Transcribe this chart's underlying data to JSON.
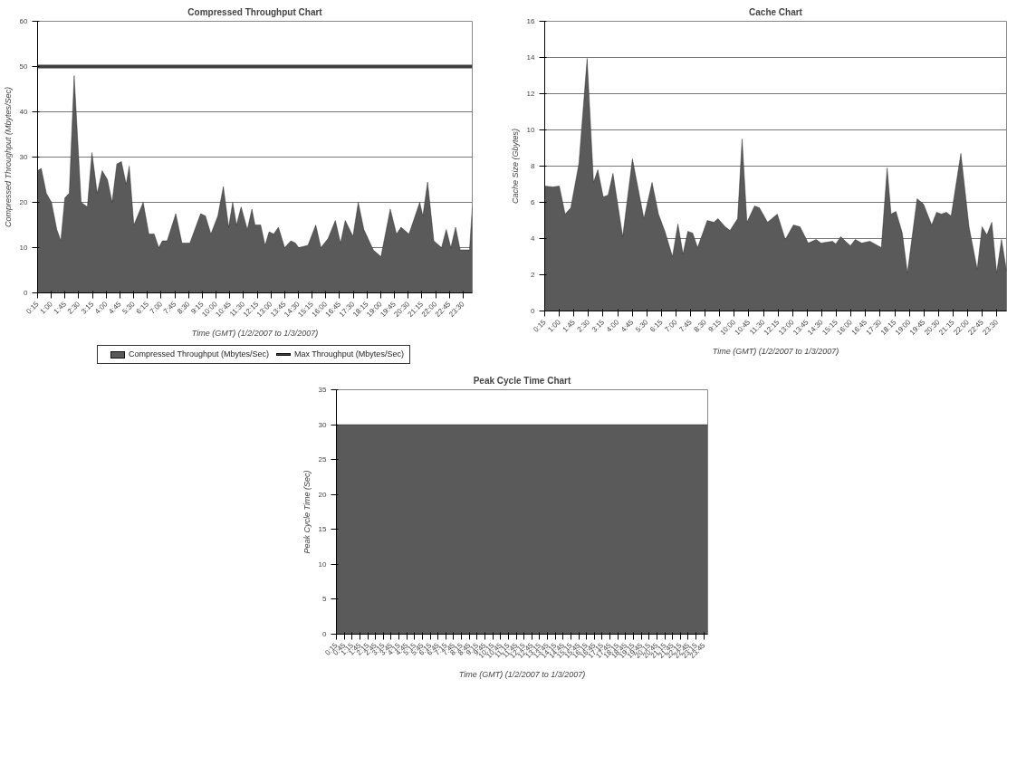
{
  "chart_data": [
    {
      "type": "area",
      "title": "Compressed Throughput Chart",
      "xlabel": "Time (GMT) (1/2/2007 to 1/3/2007)",
      "ylabel": "Compressed Throughput (Mbytes/Sec)",
      "xlim": [
        0.25,
        24
      ],
      "ylim": [
        0,
        60
      ],
      "yticks": [
        0,
        10,
        20,
        30,
        40,
        50,
        60
      ],
      "xticks": [
        {
          "value": 0.25,
          "label": "0:15"
        },
        {
          "value": 1,
          "label": "1:00"
        },
        {
          "value": 1.75,
          "label": "1:45"
        },
        {
          "value": 2.5,
          "label": "2:30"
        },
        {
          "value": 3.25,
          "label": "3:15"
        },
        {
          "value": 4,
          "label": "4:00"
        },
        {
          "value": 4.75,
          "label": "4:45"
        },
        {
          "value": 5.5,
          "label": "5:30"
        },
        {
          "value": 6.25,
          "label": "6:15"
        },
        {
          "value": 7,
          "label": "7:00"
        },
        {
          "value": 7.75,
          "label": "7:45"
        },
        {
          "value": 8.5,
          "label": "8:30"
        },
        {
          "value": 9.25,
          "label": "9:15"
        },
        {
          "value": 10,
          "label": "10:00"
        },
        {
          "value": 10.75,
          "label": "10:45"
        },
        {
          "value": 11.5,
          "label": "11:30"
        },
        {
          "value": 12.25,
          "label": "12:15"
        },
        {
          "value": 13,
          "label": "13:00"
        },
        {
          "value": 13.75,
          "label": "13:45"
        },
        {
          "value": 14.5,
          "label": "14:30"
        },
        {
          "value": 15.25,
          "label": "15:15"
        },
        {
          "value": 16,
          "label": "16:00"
        },
        {
          "value": 16.75,
          "label": "16:45"
        },
        {
          "value": 17.5,
          "label": "17:30"
        },
        {
          "value": 18.25,
          "label": "18:15"
        },
        {
          "value": 19,
          "label": "19:00"
        },
        {
          "value": 19.75,
          "label": "19:45"
        },
        {
          "value": 20.5,
          "label": "20:30"
        },
        {
          "value": 21.25,
          "label": "21:15"
        },
        {
          "value": 22,
          "label": "22:00"
        },
        {
          "value": 22.75,
          "label": "22:45"
        },
        {
          "value": 23.5,
          "label": "23:30"
        }
      ],
      "grid": "y",
      "legend": "bottom",
      "series": [
        {
          "name": "Compressed Throughput (Mbytes/Sec)",
          "type": "area",
          "color": "#5a5a5a",
          "x": [
            0.25,
            0.45,
            0.73,
            1.01,
            1.3,
            1.52,
            1.74,
            1.98,
            2.25,
            2.63,
            2.97,
            3.22,
            3.51,
            3.78,
            4.07,
            4.32,
            4.58,
            4.83,
            5.09,
            5.26,
            5.51,
            6.02,
            6.33,
            6.62,
            6.87,
            7.07,
            7.33,
            7.8,
            8.14,
            8.57,
            9.16,
            9.42,
            9.72,
            10.1,
            10.4,
            10.69,
            10.91,
            11.12,
            11.37,
            11.71,
            11.96,
            12.13,
            12.44,
            12.68,
            12.9,
            13.15,
            13.41,
            13.75,
            14.09,
            14.34,
            14.51,
            15.02,
            15.45,
            15.73,
            16.12,
            16.52,
            16.8,
            17.06,
            17.48,
            17.77,
            18.08,
            18.59,
            19.01,
            19.52,
            19.86,
            20.11,
            20.54,
            21.13,
            21.3,
            21.56,
            21.9,
            22.32,
            22.58,
            22.83,
            23.09,
            23.34,
            23.85,
            24.0
          ],
          "values": [
            27,
            27.5,
            22,
            20,
            14,
            11.5,
            21,
            22,
            48,
            20,
            19,
            31,
            22,
            27,
            25,
            20,
            28.5,
            29,
            24,
            28,
            15,
            20,
            13,
            13,
            10,
            11.5,
            11.5,
            17.5,
            11,
            11,
            17.5,
            17,
            13,
            17,
            23.5,
            14.5,
            20,
            15,
            19,
            14,
            18.5,
            15,
            15,
            10.5,
            13.5,
            13,
            14.5,
            10,
            11.5,
            11,
            10,
            10.5,
            15,
            10,
            12,
            16,
            11,
            16,
            12.5,
            20,
            14,
            9.5,
            8,
            18.5,
            13,
            14.5,
            13,
            20,
            17,
            24.5,
            11.5,
            10,
            14,
            10,
            14.5,
            9.5,
            9.5,
            19
          ]
        },
        {
          "name": "Max Throughput (Mbytes/Sec)",
          "type": "line",
          "color": "#404040",
          "x": [
            0.25,
            24
          ],
          "values": [
            50,
            50
          ]
        }
      ]
    },
    {
      "type": "area",
      "title": "Cache Chart",
      "xlabel": "Time (GMT) (1/2/2007 to 1/3/2007)",
      "ylabel": "Cache Size (Gbytes)",
      "xlim": [
        0.25,
        24
      ],
      "ylim": [
        0,
        16
      ],
      "yticks": [
        0,
        2,
        4,
        6,
        8,
        10,
        12,
        14,
        16
      ],
      "xticks": [
        {
          "value": 0.25,
          "label": "0:15"
        },
        {
          "value": 1,
          "label": "1:00"
        },
        {
          "value": 1.75,
          "label": "1:45"
        },
        {
          "value": 2.5,
          "label": "2:30"
        },
        {
          "value": 3.25,
          "label": "3:15"
        },
        {
          "value": 4,
          "label": "4:00"
        },
        {
          "value": 4.75,
          "label": "4:45"
        },
        {
          "value": 5.5,
          "label": "5:30"
        },
        {
          "value": 6.25,
          "label": "6:15"
        },
        {
          "value": 7,
          "label": "7:00"
        },
        {
          "value": 7.75,
          "label": "7:45"
        },
        {
          "value": 8.5,
          "label": "8:30"
        },
        {
          "value": 9.25,
          "label": "9:15"
        },
        {
          "value": 10,
          "label": "10:00"
        },
        {
          "value": 10.75,
          "label": "10:45"
        },
        {
          "value": 11.5,
          "label": "11:30"
        },
        {
          "value": 12.25,
          "label": "12:15"
        },
        {
          "value": 13,
          "label": "13:00"
        },
        {
          "value": 13.75,
          "label": "13:45"
        },
        {
          "value": 14.5,
          "label": "14:30"
        },
        {
          "value": 15.25,
          "label": "15:15"
        },
        {
          "value": 16,
          "label": "16:00"
        },
        {
          "value": 16.75,
          "label": "16:45"
        },
        {
          "value": 17.5,
          "label": "17:30"
        },
        {
          "value": 18.25,
          "label": "18:15"
        },
        {
          "value": 19,
          "label": "19:00"
        },
        {
          "value": 19.75,
          "label": "19:45"
        },
        {
          "value": 20.5,
          "label": "20:30"
        },
        {
          "value": 21.25,
          "label": "21:15"
        },
        {
          "value": 22,
          "label": "22:00"
        },
        {
          "value": 22.75,
          "label": "22:45"
        },
        {
          "value": 23.5,
          "label": "23:30"
        }
      ],
      "grid": "y",
      "series": [
        {
          "color": "#5a5a5a",
          "x": [
            0.25,
            0.67,
            1.0,
            1.3,
            1.59,
            2.01,
            2.43,
            2.76,
            2.98,
            3.26,
            3.51,
            3.76,
            4.26,
            4.76,
            5.35,
            5.77,
            6.1,
            6.43,
            6.82,
            7.1,
            7.36,
            7.61,
            7.86,
            8.11,
            8.61,
            8.95,
            9.16,
            9.53,
            9.78,
            10.17,
            10.4,
            10.65,
            11.04,
            11.29,
            11.71,
            12.21,
            12.62,
            13.04,
            13.38,
            13.8,
            14.21,
            14.46,
            15.05,
            15.22,
            15.47,
            15.97,
            16.22,
            16.55,
            16.97,
            17.56,
            17.86,
            18.06,
            18.31,
            18.64,
            18.9,
            19.4,
            19.73,
            20.15,
            20.4,
            20.65,
            20.9,
            21.15,
            21.65,
            22.07,
            22.49,
            22.74,
            22.99,
            23.24,
            23.49,
            23.74,
            24.0
          ],
          "values": [
            6.9,
            6.85,
            6.9,
            5.35,
            5.7,
            8.15,
            13.95,
            7.1,
            7.8,
            6.3,
            6.4,
            7.6,
            4.1,
            8.4,
            5.1,
            7.1,
            5.35,
            4.4,
            3.0,
            4.8,
            3.15,
            4.4,
            4.3,
            3.5,
            5.0,
            4.9,
            5.1,
            4.65,
            4.45,
            5.1,
            9.5,
            4.9,
            5.8,
            5.7,
            4.9,
            5.35,
            3.95,
            4.75,
            4.65,
            3.75,
            3.95,
            3.75,
            3.85,
            3.7,
            4.1,
            3.6,
            3.95,
            3.75,
            3.85,
            3.5,
            7.9,
            5.35,
            5.5,
            4.3,
            2.1,
            6.2,
            5.9,
            4.75,
            5.45,
            5.35,
            5.45,
            5.25,
            8.7,
            4.65,
            2.3,
            4.65,
            4.2,
            4.9,
            2.1,
            3.95,
            2.2
          ]
        }
      ]
    },
    {
      "type": "area",
      "title": "Peak Cycle Time Chart",
      "xlabel": "Time (GMT) (1/2/2007 to 1/3/2007)",
      "ylabel": "Peak Cycle Time (Sec)",
      "xlim": [
        0.25,
        24
      ],
      "ylim": [
        0,
        35
      ],
      "yticks": [
        0,
        5,
        10,
        15,
        20,
        25,
        30,
        35
      ],
      "xticks": [
        {
          "value": 0.25,
          "label": "0:15"
        },
        {
          "value": 0.75,
          "label": "0:45"
        },
        {
          "value": 1.25,
          "label": "1:15"
        },
        {
          "value": 1.75,
          "label": "1:45"
        },
        {
          "value": 2.25,
          "label": "2:15"
        },
        {
          "value": 2.75,
          "label": "2:45"
        },
        {
          "value": 3.25,
          "label": "3:15"
        },
        {
          "value": 3.75,
          "label": "3:45"
        },
        {
          "value": 4.25,
          "label": "4:15"
        },
        {
          "value": 4.75,
          "label": "4:45"
        },
        {
          "value": 5.25,
          "label": "5:15"
        },
        {
          "value": 5.75,
          "label": "5:45"
        },
        {
          "value": 6.25,
          "label": "6:15"
        },
        {
          "value": 6.75,
          "label": "6:45"
        },
        {
          "value": 7.25,
          "label": "7:15"
        },
        {
          "value": 7.75,
          "label": "7:45"
        },
        {
          "value": 8.25,
          "label": "8:15"
        },
        {
          "value": 8.75,
          "label": "8:45"
        },
        {
          "value": 9.25,
          "label": "9:15"
        },
        {
          "value": 9.75,
          "label": "9:45"
        },
        {
          "value": 10.25,
          "label": "10:15"
        },
        {
          "value": 10.75,
          "label": "10:45"
        },
        {
          "value": 11.25,
          "label": "11:15"
        },
        {
          "value": 11.75,
          "label": "11:45"
        },
        {
          "value": 12.25,
          "label": "12:15"
        },
        {
          "value": 12.75,
          "label": "12:45"
        },
        {
          "value": 13.25,
          "label": "13:15"
        },
        {
          "value": 13.75,
          "label": "13:45"
        },
        {
          "value": 14.25,
          "label": "14:15"
        },
        {
          "value": 14.75,
          "label": "14:45"
        },
        {
          "value": 15.25,
          "label": "15:15"
        },
        {
          "value": 15.75,
          "label": "15:45"
        },
        {
          "value": 16.25,
          "label": "16:15"
        },
        {
          "value": 16.75,
          "label": "16:45"
        },
        {
          "value": 17.25,
          "label": "17:15"
        },
        {
          "value": 17.75,
          "label": "17:45"
        },
        {
          "value": 18.25,
          "label": "18:15"
        },
        {
          "value": 18.75,
          "label": "18:45"
        },
        {
          "value": 19.25,
          "label": "19:15"
        },
        {
          "value": 19.75,
          "label": "19:45"
        },
        {
          "value": 20.25,
          "label": "20:15"
        },
        {
          "value": 20.75,
          "label": "20:45"
        },
        {
          "value": 21.25,
          "label": "21:15"
        },
        {
          "value": 21.75,
          "label": "21:45"
        },
        {
          "value": 22.25,
          "label": "22:15"
        },
        {
          "value": 22.75,
          "label": "22:45"
        },
        {
          "value": 23.25,
          "label": "23:15"
        },
        {
          "value": 23.75,
          "label": "23:45"
        }
      ],
      "grid": "y",
      "series": [
        {
          "color": "#5a5a5a",
          "x": [
            0.25,
            24
          ],
          "values": [
            30,
            30
          ]
        }
      ]
    }
  ]
}
